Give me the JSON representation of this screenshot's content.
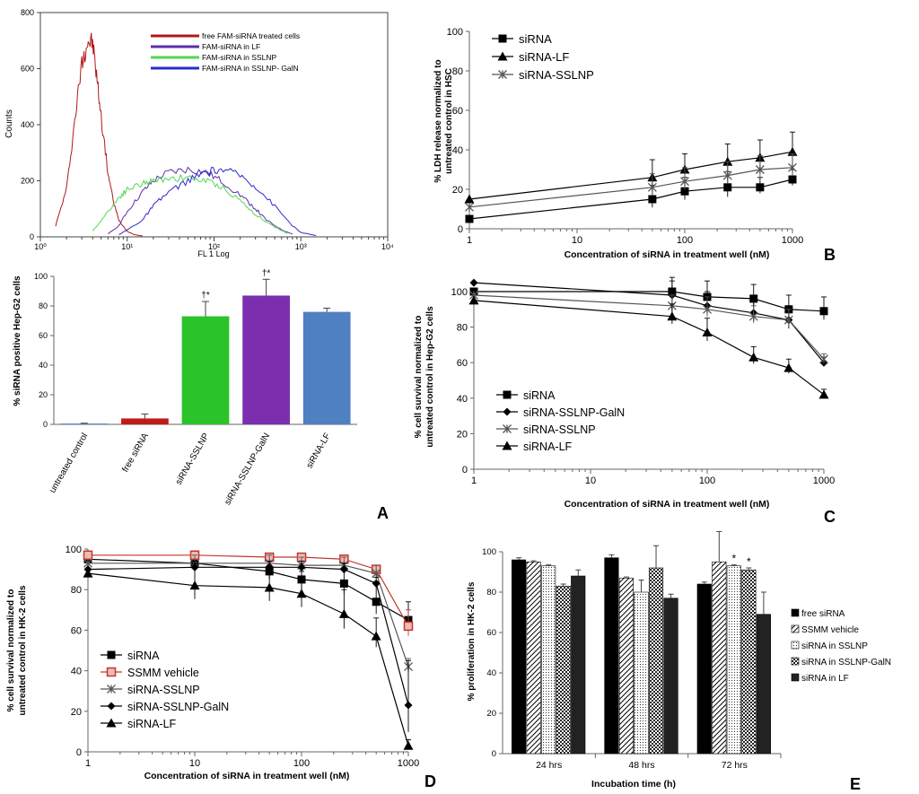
{
  "chart_data": [
    {
      "id": "flow",
      "type": "line",
      "title": "",
      "xlabel": "FL 1 Log",
      "ylabel": "Counts",
      "x_scale": "log",
      "xlim": [
        1,
        10000
      ],
      "ylim": [
        0,
        800
      ],
      "xticks_labels": [
        "10⁰",
        "10¹",
        "10²",
        "10³",
        "10⁴"
      ],
      "yticks_labels": [
        "0",
        "200",
        "400",
        "600",
        "800"
      ],
      "legend": [
        "free FAM-siRNA treated cells",
        "FAM-siRNA in LF",
        "FAM-siRNA in SSLNP",
        "FAM-siRNA in SSLNP- GalN"
      ],
      "colors": [
        "#b01818",
        "#5a2fa8",
        "#52d852",
        "#2a2ad0"
      ],
      "series": [
        {
          "name": "free FAM-siRNA treated cells",
          "x": [
            1.5,
            2,
            2.5,
            3,
            3.5,
            4,
            4.5,
            5,
            6,
            7,
            8,
            10,
            12,
            15
          ],
          "y": [
            40,
            170,
            420,
            620,
            700,
            690,
            560,
            430,
            230,
            120,
            60,
            20,
            8,
            3
          ]
        },
        {
          "name": "FAM-siRNA in LF",
          "x": [
            6,
            8,
            10,
            15,
            20,
            30,
            50,
            80,
            120,
            200,
            300,
            400,
            600,
            800
          ],
          "y": [
            10,
            40,
            90,
            160,
            200,
            230,
            240,
            230,
            200,
            150,
            100,
            60,
            25,
            10
          ]
        },
        {
          "name": "FAM-siRNA in SSLNP",
          "x": [
            4,
            6,
            8,
            10,
            15,
            20,
            30,
            50,
            80,
            120,
            200,
            300,
            500,
            700
          ],
          "y": [
            20,
            90,
            140,
            170,
            190,
            200,
            210,
            210,
            200,
            180,
            130,
            80,
            35,
            12
          ]
        },
        {
          "name": "FAM-siRNA in SSLNP- GalN",
          "x": [
            8,
            10,
            15,
            20,
            30,
            50,
            80,
            120,
            200,
            300,
            500,
            800,
            1000,
            1500
          ],
          "y": [
            8,
            25,
            60,
            110,
            160,
            200,
            230,
            240,
            220,
            180,
            110,
            40,
            15,
            5
          ]
        }
      ]
    },
    {
      "id": "bar",
      "panel_label": "A",
      "type": "bar",
      "title": "",
      "xlabel": "",
      "ylabel": "% siRNA positive Hep-G2 cells",
      "ylim": [
        0,
        100
      ],
      "yticks_labels": [
        "0",
        "20",
        "40",
        "60",
        "80",
        "100"
      ],
      "categories": [
        "untreated control",
        "free siRNA",
        "siRNA-SSLNP",
        "siRNA-SSLNP-GalN",
        "siRNA-LF"
      ],
      "values": [
        0.5,
        4,
        73,
        87,
        76
      ],
      "errors": [
        0.3,
        3,
        10,
        11,
        2.5
      ],
      "colors": [
        "#4a76b8",
        "#bf1b1b",
        "#2ac32a",
        "#7b2fae",
        "#4f80c1"
      ],
      "annotations": [
        "",
        "",
        "†*",
        "†*",
        ""
      ]
    },
    {
      "id": "ldh",
      "panel_label": "B",
      "type": "line",
      "title": "",
      "xlabel": "Concentration  of siRNA  in treatment well (nM)",
      "ylabel_line1": "% LDH release normalized to",
      "ylabel_line2": "untreated control in HSC",
      "x_scale": "log",
      "xlim": [
        1,
        1000
      ],
      "ylim": [
        0,
        100
      ],
      "xticks_labels": [
        "1",
        "10",
        "100",
        "1000"
      ],
      "yticks_labels": [
        "0",
        "20",
        "40",
        "60",
        "80",
        "100"
      ],
      "series": [
        {
          "name": "siRNA",
          "marker": "square",
          "x": [
            1,
            50,
            100,
            250,
            500,
            1000
          ],
          "y": [
            5,
            15,
            19,
            21,
            21,
            25
          ],
          "err": [
            0,
            7,
            7,
            8,
            5,
            5
          ]
        },
        {
          "name": "siRNA-LF",
          "marker": "triangle",
          "x": [
            1,
            50,
            100,
            250,
            500,
            1000
          ],
          "y": [
            15,
            26,
            30,
            34,
            36,
            39
          ],
          "err": [
            0,
            9,
            8,
            9,
            9,
            10
          ]
        },
        {
          "name": "siRNA-SSLNP",
          "marker": "star",
          "x": [
            1,
            50,
            100,
            250,
            500,
            1000
          ],
          "y": [
            11,
            21,
            24,
            27,
            30,
            31
          ],
          "err": [
            0,
            7,
            7,
            7,
            7,
            7
          ]
        }
      ]
    },
    {
      "id": "hepg2",
      "panel_label": "C",
      "type": "line",
      "title": "",
      "xlabel": "Concentration of siRNA  in treatment well (nM)",
      "ylabel_line1": "% cell survival normalized to",
      "ylabel_line2": "untreated control in Hep-G2 cells",
      "x_scale": "log",
      "xlim": [
        1,
        1000
      ],
      "ylim": [
        0,
        100
      ],
      "xticks_labels": [
        "1",
        "10",
        "100",
        "1000"
      ],
      "yticks_labels": [
        "0",
        "20",
        "40",
        "60",
        "80",
        "100"
      ],
      "series": [
        {
          "name": "siRNA",
          "marker": "square",
          "x": [
            1,
            50,
            100,
            250,
            500,
            1000
          ],
          "y": [
            100,
            100,
            97,
            96,
            90,
            89
          ],
          "err": [
            0,
            8,
            9,
            8,
            8,
            8
          ]
        },
        {
          "name": "siRNA-SSLNP-GalN",
          "marker": "diamond",
          "x": [
            1,
            50,
            100,
            250,
            500,
            1000
          ],
          "y": [
            105,
            98,
            92,
            88,
            84,
            60
          ],
          "err": [
            0,
            8,
            8,
            8,
            8,
            3
          ]
        },
        {
          "name": "siRNA-SSLNP",
          "marker": "star",
          "x": [
            1,
            50,
            100,
            250,
            500,
            1000
          ],
          "y": [
            98,
            92,
            90,
            86,
            84,
            62
          ],
          "err": [
            0,
            6,
            7,
            6,
            6,
            3
          ]
        },
        {
          "name": "siRNA-LF",
          "marker": "triangle",
          "x": [
            1,
            50,
            100,
            250,
            500,
            1000
          ],
          "y": [
            95,
            86,
            77,
            63,
            57,
            42
          ],
          "err": [
            0,
            7,
            8,
            6,
            5,
            3
          ]
        }
      ]
    },
    {
      "id": "hk2",
      "panel_label": "D",
      "type": "line",
      "title": "",
      "xlabel": "Concentration of siRNA  in treatment well (nM)",
      "ylabel_line1": "% cell survival normalized to",
      "ylabel_line2": "untreated control in HK-2 cells",
      "x_scale": "log",
      "xlim": [
        1,
        1000
      ],
      "ylim": [
        0,
        100
      ],
      "xticks_labels": [
        "1",
        "10",
        "100",
        "1000"
      ],
      "yticks_labels": [
        "0",
        "20",
        "40",
        "60",
        "80",
        "100"
      ],
      "series": [
        {
          "name": "siRNA",
          "marker": "square",
          "x": [
            1,
            10,
            50,
            100,
            250,
            500,
            1000
          ],
          "y": [
            95,
            93,
            89,
            85,
            83,
            74,
            65
          ],
          "err": [
            0,
            6,
            6,
            8,
            8,
            10,
            9
          ]
        },
        {
          "name": "SSMM vehicle",
          "marker": "open-square",
          "x": [
            1,
            10,
            50,
            100,
            250,
            500,
            1000
          ],
          "y": [
            97,
            97,
            96,
            96,
            95,
            90,
            62
          ],
          "err": [
            0,
            2,
            2,
            2,
            2,
            2,
            8
          ]
        },
        {
          "name": "siRNA-SSLNP",
          "marker": "star",
          "x": [
            1,
            10,
            50,
            100,
            250,
            500,
            1000
          ],
          "y": [
            93,
            93,
            93,
            92,
            92,
            88,
            42
          ],
          "err": [
            0,
            4,
            4,
            4,
            4,
            4,
            4
          ]
        },
        {
          "name": "siRNA-SSLNP-GalN",
          "marker": "diamond",
          "x": [
            1,
            10,
            50,
            100,
            250,
            500,
            1000
          ],
          "y": [
            90,
            91,
            91,
            91,
            90,
            83,
            23
          ],
          "err": [
            0,
            3,
            3,
            3,
            3,
            3,
            22
          ]
        },
        {
          "name": "siRNA-LF",
          "marker": "triangle",
          "x": [
            1,
            10,
            50,
            100,
            250,
            500,
            1000
          ],
          "y": [
            88,
            82,
            81,
            78,
            68,
            57,
            3
          ],
          "err": [
            0,
            11,
            11,
            11,
            12,
            9,
            3
          ]
        }
      ]
    },
    {
      "id": "prolif",
      "panel_label": "E",
      "type": "bar",
      "title": "",
      "xlabel": "Incubation time (h)",
      "ylabel": "% proliferation  in HK-2 cells",
      "ylim": [
        0,
        100
      ],
      "yticks_labels": [
        "0",
        "20",
        "40",
        "60",
        "80",
        "100"
      ],
      "categories": [
        "24 hrs",
        "48 hrs",
        "72 hrs"
      ],
      "series": [
        {
          "name": "free siRNA",
          "pattern": "solid",
          "values": [
            96,
            97,
            84
          ],
          "err": [
            1,
            1.5,
            1
          ]
        },
        {
          "name": "SSMM vehicle",
          "pattern": "hatch",
          "values": [
            95,
            87,
            95
          ],
          "err": [
            0.5,
            0.5,
            15
          ]
        },
        {
          "name": "siRNA in SSLNP",
          "pattern": "dots",
          "values": [
            93,
            80,
            93
          ],
          "err": [
            0.5,
            6,
            0.5
          ]
        },
        {
          "name": "siRNA in SSLNP-GalN",
          "pattern": "check",
          "values": [
            83,
            92,
            91
          ],
          "err": [
            1,
            11,
            1
          ]
        },
        {
          "name": "siRNA in LF",
          "pattern": "dark",
          "values": [
            88,
            77,
            69
          ],
          "err": [
            3,
            2,
            11
          ]
        }
      ],
      "annotations": [
        {
          "text": "*",
          "category": "72 hrs",
          "series": "siRNA in SSLNP"
        },
        {
          "text": "*",
          "category": "72 hrs",
          "series": "siRNA in SSLNP-GalN"
        }
      ]
    }
  ]
}
